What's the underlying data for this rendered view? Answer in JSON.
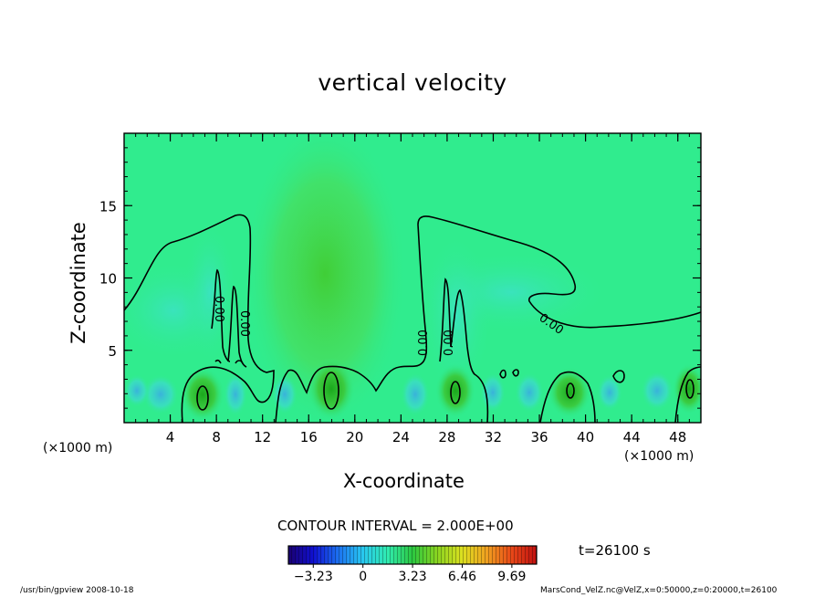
{
  "chart_data": {
    "type": "heatmap",
    "title": "vertical velocity",
    "xlabel": "X-coordinate",
    "ylabel": "Z-coordinate",
    "x_unit_left": "(×1000 m)",
    "x_unit_right": "(×1000 m)",
    "xlim": [
      0,
      50
    ],
    "ylim": [
      0,
      20
    ],
    "x_ticks": [
      4,
      8,
      12,
      16,
      20,
      24,
      28,
      32,
      36,
      40,
      44,
      48
    ],
    "x_tick_labels": [
      "4",
      "8",
      "12",
      "16",
      "20",
      "24",
      "28",
      "32",
      "36",
      "40",
      "44",
      "48"
    ],
    "y_ticks": [
      5,
      10,
      15
    ],
    "y_tick_labels": [
      "5",
      "10",
      "15"
    ],
    "contour_interval_text": "CONTOUR INTERVAL = 2.000E+00",
    "contour_labels": [
      "0.00",
      "0.00",
      "0.00",
      "0.00",
      "0.00"
    ],
    "colorbar": {
      "min": -4.85,
      "max": 11.3,
      "tick_values": [
        -3.23,
        0,
        3.23,
        6.46,
        9.69
      ],
      "tick_labels": [
        "−3.23",
        "0",
        "3.23",
        "6.46",
        "9.69"
      ]
    },
    "time_label": "t=26100  s",
    "updraft_centers_x": [
      6.8,
      18.2,
      28.9,
      38.6,
      48.7
    ],
    "footer_left": "/usr/bin/gpview   2008-10-18",
    "footer_right": "MarsCond_VelZ.nc@VelZ,x=0:50000,z=0:20000,t=26100"
  },
  "colors": {
    "field_background": "#30ec8e",
    "updraft_core": "#23b81e",
    "downdraft": "#40d0e4",
    "contour": "#000000"
  }
}
